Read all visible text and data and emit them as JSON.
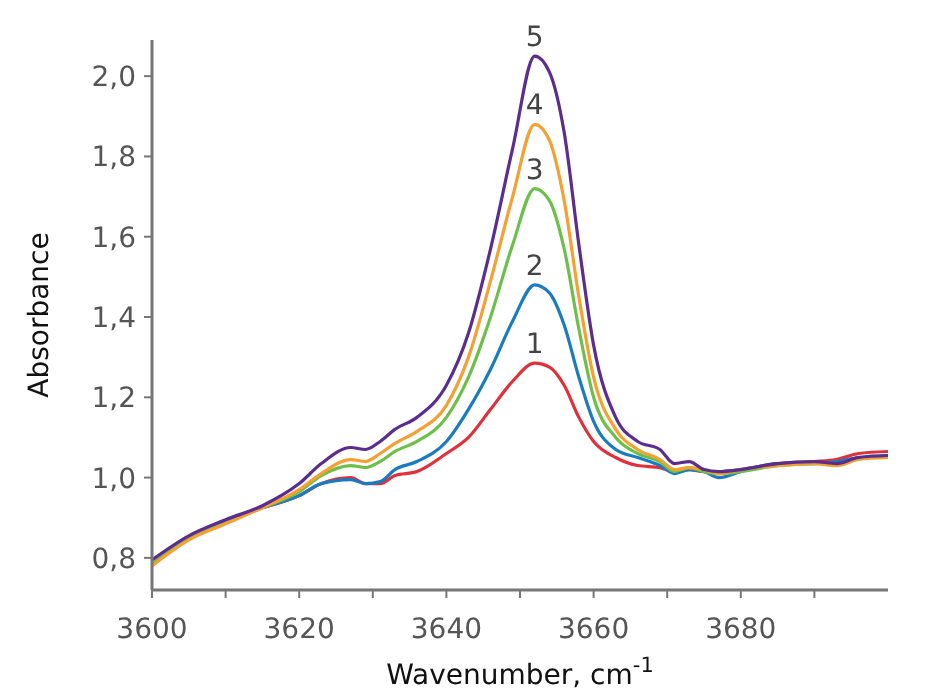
{
  "chart_data": {
    "type": "line",
    "xlabel": "Wavenumber, cm$^{-1}$",
    "ylabel": "Absorbance",
    "x": [
      3600,
      3605,
      3610,
      3615,
      3620,
      3623,
      3627,
      3629,
      3631,
      3633,
      3636,
      3640,
      3643,
      3646,
      3649,
      3652,
      3654,
      3656,
      3658,
      3660,
      3663,
      3666,
      3669,
      3671,
      3673,
      3675,
      3677,
      3680,
      3685,
      3690,
      3693,
      3696,
      3700
    ],
    "series": [
      {
        "name": "1",
        "color": "#e0303a",
        "values": [
          null,
          null,
          null,
          0.925,
          0.955,
          0.985,
          1.0,
          0.985,
          0.985,
          1.005,
          1.015,
          1.06,
          1.1,
          1.17,
          1.24,
          1.285,
          1.275,
          1.23,
          1.15,
          1.09,
          1.05,
          1.03,
          1.025,
          1.015,
          1.02,
          1.015,
          1.015,
          1.02,
          1.035,
          1.04,
          1.045,
          1.06,
          1.065
        ]
      },
      {
        "name": "2",
        "color": "#1a7cbf",
        "values": [
          null,
          null,
          0.89,
          0.925,
          0.955,
          0.985,
          0.995,
          0.985,
          0.99,
          1.02,
          1.04,
          1.09,
          1.17,
          1.27,
          1.39,
          1.48,
          1.46,
          1.38,
          1.25,
          1.14,
          1.07,
          1.05,
          1.03,
          1.01,
          1.02,
          1.015,
          1.0,
          1.015,
          1.035,
          1.035,
          1.04,
          1.05,
          1.055
        ]
      },
      {
        "name": "3",
        "color": "#6cc04a",
        "values": [
          0.785,
          0.85,
          0.89,
          0.925,
          0.965,
          1.005,
          1.03,
          1.025,
          1.04,
          1.065,
          1.09,
          1.15,
          1.25,
          1.4,
          1.58,
          1.72,
          1.69,
          1.57,
          1.37,
          1.2,
          1.1,
          1.06,
          1.04,
          1.015,
          1.025,
          1.015,
          1.01,
          1.015,
          1.03,
          1.035,
          1.035,
          null,
          null
        ]
      },
      {
        "name": "4",
        "color": "#f5a030",
        "values": [
          0.78,
          0.845,
          0.885,
          0.925,
          0.97,
          1.01,
          1.045,
          1.04,
          1.06,
          1.085,
          1.115,
          1.18,
          1.3,
          1.49,
          1.7,
          1.88,
          1.84,
          1.69,
          1.45,
          1.25,
          1.12,
          1.07,
          1.045,
          1.02,
          1.025,
          1.02,
          1.01,
          1.02,
          1.03,
          1.035,
          1.03,
          1.045,
          1.05
        ]
      },
      {
        "name": "5",
        "color": "#5b2d8e",
        "values": [
          0.795,
          0.855,
          0.895,
          0.93,
          0.985,
          1.035,
          1.075,
          1.07,
          1.09,
          1.12,
          1.15,
          1.23,
          1.36,
          1.57,
          1.82,
          2.05,
          2.01,
          1.86,
          1.58,
          1.33,
          1.15,
          1.09,
          1.07,
          1.035,
          1.04,
          1.02,
          1.015,
          1.02,
          1.035,
          1.04,
          1.035,
          1.05,
          1.055
        ]
      }
    ],
    "xlim": [
      3600,
      3700
    ],
    "xticks": [
      3600,
      {
        "value": 3610,
        "label": null
      },
      3620,
      {
        "value": 3630,
        "label": null
      },
      3640,
      {
        "value": 3650,
        "label": null
      },
      3660,
      {
        "value": 3670,
        "label": null
      },
      3680,
      {
        "value": 3690,
        "label": null
      }
    ],
    "ylim": [
      0.72,
      2.09
    ],
    "yticks": [
      {
        "value": 0.8,
        "label": "0,8"
      },
      {
        "value": 1.0,
        "label": "1,0"
      },
      {
        "value": 1.2,
        "label": "1,2"
      },
      {
        "value": 1.4,
        "label": "1,4"
      },
      {
        "value": 1.6,
        "label": "1,6"
      },
      {
        "value": 1.8,
        "label": "1,8"
      },
      {
        "value": 2.0,
        "label": "2,0"
      }
    ],
    "grid": false,
    "marker": "none",
    "line_style": "solid"
  }
}
